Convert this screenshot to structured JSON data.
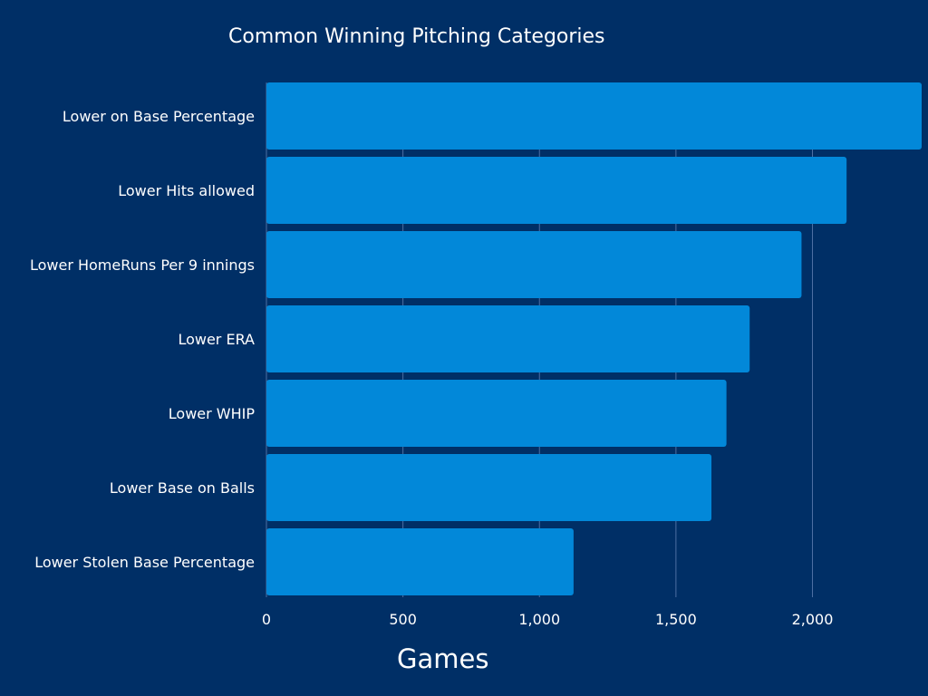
{
  "chart_data": {
    "type": "bar",
    "orientation": "horizontal",
    "title": "Common Winning Pitching Categories",
    "xlabel": "Games",
    "ylabel": "",
    "categories": [
      "Lower on Base Percentage",
      "Lower Hits allowed",
      "Lower HomeRuns Per 9 innings",
      "Lower ERA",
      "Lower WHIP",
      "Lower Base on Balls",
      "Lower Stolen Base Percentage"
    ],
    "values": [
      2400,
      2125,
      1960,
      1770,
      1685,
      1630,
      1125
    ],
    "xlim": [
      0,
      2400
    ],
    "xticks": [
      0,
      500,
      1000,
      1500,
      2000
    ],
    "xtick_labels": [
      "0",
      "500",
      "1,000",
      "1,500",
      "2,000"
    ],
    "grid": true,
    "colors": {
      "background": "#002f66",
      "bar": "#0288d9",
      "gridline": "#4d6fa3",
      "text": "#ffffff"
    }
  }
}
